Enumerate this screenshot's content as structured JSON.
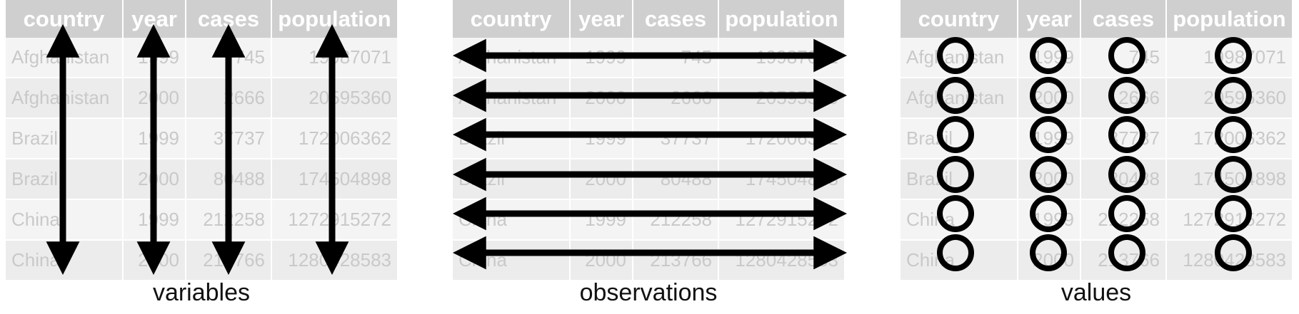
{
  "columns": [
    "country",
    "year",
    "cases",
    "population"
  ],
  "rows": [
    {
      "country": "Afghanistan",
      "year": "1999",
      "cases": "745",
      "population": "19987071"
    },
    {
      "country": "Afghanistan",
      "year": "2000",
      "cases": "2666",
      "population": "20595360"
    },
    {
      "country": "Brazil",
      "year": "1999",
      "cases": "37737",
      "population": "172006362"
    },
    {
      "country": "Brazil",
      "year": "2000",
      "cases": "80488",
      "population": "174504898"
    },
    {
      "country": "China",
      "year": "1999",
      "cases": "212258",
      "population": "1272915272"
    },
    {
      "country": "China",
      "year": "2000",
      "cases": "213766",
      "population": "1280428583"
    }
  ],
  "panels": [
    {
      "id": "variables",
      "caption": "variables",
      "mark": "vertical-arrow"
    },
    {
      "id": "observations",
      "caption": "observations",
      "mark": "horizontal-arrow"
    },
    {
      "id": "values",
      "caption": "values",
      "mark": "circle"
    }
  ],
  "colors": {
    "header_bg": "#cfcfcf",
    "header_text": "#ffffff",
    "cell_text": "#c9c9c9",
    "mark": "#000000"
  }
}
